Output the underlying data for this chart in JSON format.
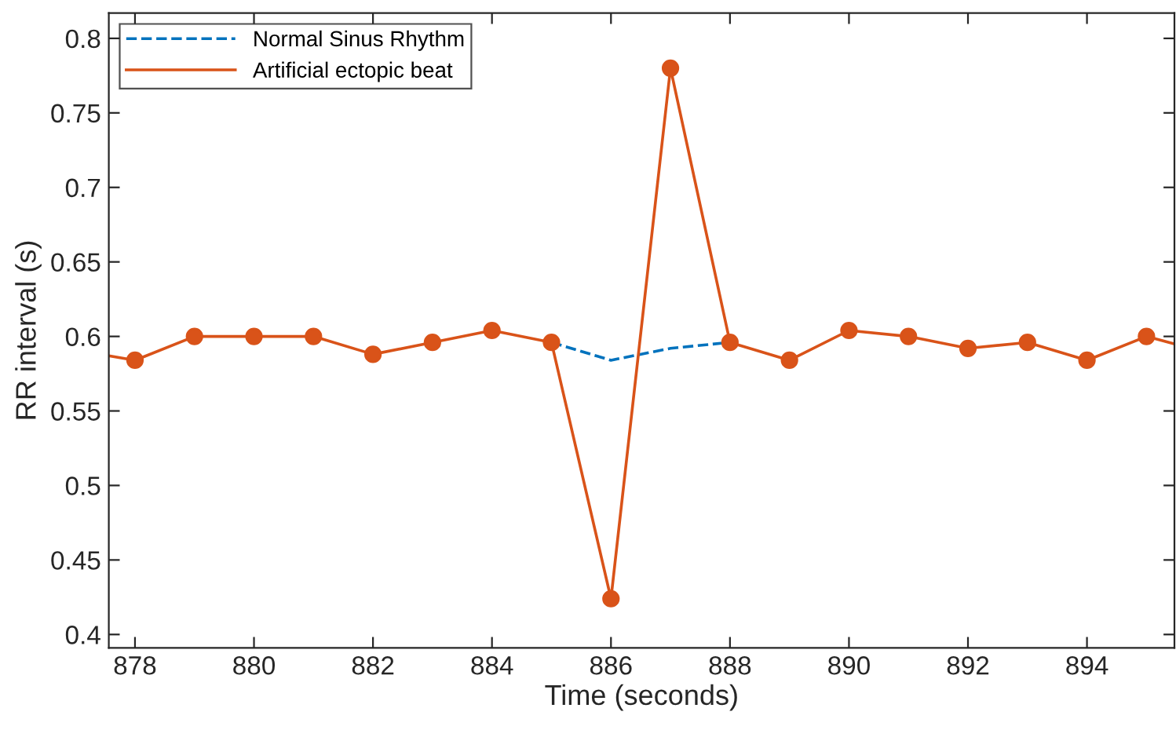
{
  "chart_data": {
    "type": "line",
    "xlabel": "Time (seconds)",
    "ylabel": "RR interval (s)",
    "xlim": [
      877.56,
      895.47
    ],
    "ylim": [
      0.391,
      0.817
    ],
    "xticks": [
      878,
      880,
      882,
      884,
      886,
      888,
      890,
      892,
      894
    ],
    "yticks": [
      0.4,
      0.45,
      0.5,
      0.55,
      0.6,
      0.65,
      0.7,
      0.75,
      0.8
    ],
    "grid": false,
    "legend": "top left",
    "series": [
      {
        "name": "Normal Sinus Rhythm",
        "color": "#0072bd",
        "line_style": "dashed",
        "marker": "none",
        "x": [
          885,
          886,
          887,
          888
        ],
        "values": [
          0.596,
          0.584,
          0.592,
          0.596
        ]
      },
      {
        "name": "Artificial ectopic beat",
        "color": "#d95319",
        "line_style": "solid",
        "marker": "circle",
        "x": [
          877.56,
          878,
          879,
          880,
          881,
          882,
          883,
          884,
          885,
          886,
          887,
          888,
          889,
          890,
          891,
          892,
          893,
          894,
          895,
          895.47
        ],
        "values": [
          0.587,
          0.584,
          0.6,
          0.6,
          0.6,
          0.588,
          0.596,
          0.604,
          0.596,
          0.424,
          0.78,
          0.596,
          0.584,
          0.604,
          0.6,
          0.592,
          0.596,
          0.584,
          0.6,
          0.595
        ]
      }
    ]
  }
}
